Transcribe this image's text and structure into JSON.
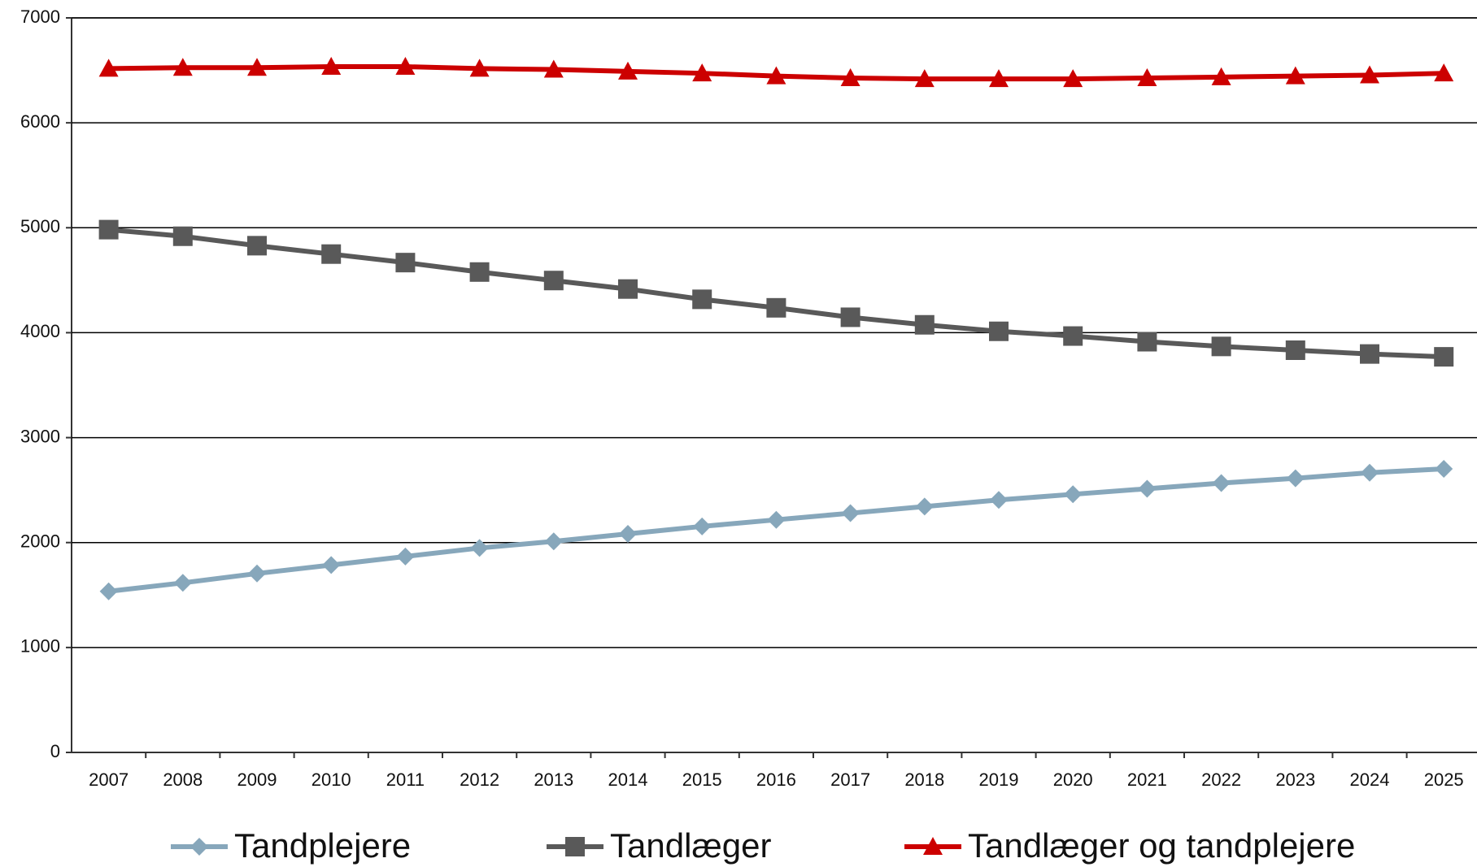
{
  "chart_data": {
    "type": "line",
    "categories": [
      "2007",
      "2008",
      "2009",
      "2010",
      "2011",
      "2012",
      "2013",
      "2014",
      "2015",
      "2016",
      "2017",
      "2018",
      "2019",
      "2020",
      "2021",
      "2022",
      "2023",
      "2024",
      "2025"
    ],
    "series": [
      {
        "name": "Tandplejere",
        "color": "#87a7bb",
        "marker": "diamond",
        "values": [
          1535,
          1616,
          1705,
          1786,
          1867,
          1948,
          2011,
          2083,
          2154,
          2217,
          2280,
          2343,
          2406,
          2460,
          2513,
          2567,
          2612,
          2666,
          2702
        ]
      },
      {
        "name": "Tandlæger",
        "color": "#595959",
        "marker": "square",
        "values": [
          4982,
          4919,
          4829,
          4749,
          4668,
          4578,
          4497,
          4416,
          4318,
          4237,
          4147,
          4075,
          4013,
          3968,
          3914,
          3869,
          3833,
          3797,
          3770
        ]
      },
      {
        "name": "Tandlæger og tandplejere",
        "color": "#cc0000",
        "marker": "triangle",
        "values": [
          6517,
          6526,
          6526,
          6535,
          6535,
          6517,
          6508,
          6490,
          6472,
          6445,
          6427,
          6418,
          6418,
          6418,
          6427,
          6436,
          6445,
          6454,
          6472
        ]
      }
    ],
    "ylim": [
      0,
      7000
    ],
    "yticks": [
      0,
      1000,
      2000,
      3000,
      4000,
      5000,
      6000,
      7000
    ],
    "grid": true,
    "legend": "bottom"
  }
}
